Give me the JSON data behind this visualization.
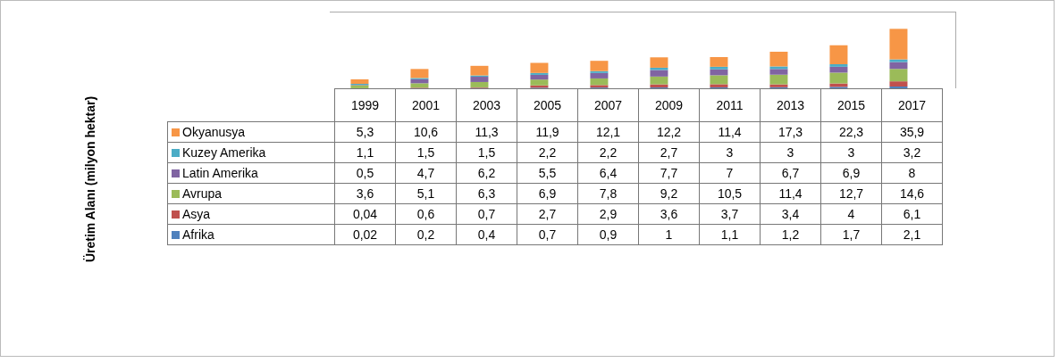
{
  "chart_data": {
    "type": "bar",
    "stacked": true,
    "annotations": [
      "Üretim Alanı (milyon hektar)"
    ],
    "legend": "left",
    "categories": [
      "1999",
      "2001",
      "2003",
      "2005",
      "2007",
      "2009",
      "2011",
      "2013",
      "2015",
      "2017"
    ],
    "series": [
      {
        "name": "Afrika",
        "color": "#4f81bd",
        "values": [
          0.02,
          0.2,
          0.4,
          0.7,
          0.9,
          1,
          1.1,
          1.2,
          1.7,
          2.1
        ],
        "value_labels": [
          "0,02",
          "0,2",
          "0,4",
          "0,7",
          "0,9",
          "1",
          "1,1",
          "1,2",
          "1,7",
          "2,1"
        ]
      },
      {
        "name": "Asya",
        "color": "#c0504d",
        "values": [
          0.04,
          0.6,
          0.7,
          2.7,
          2.9,
          3.6,
          3.7,
          3.4,
          4,
          6.1
        ],
        "value_labels": [
          "0,04",
          "0,6",
          "0,7",
          "2,7",
          "2,9",
          "3,6",
          "3,7",
          "3,4",
          "4",
          "6,1"
        ]
      },
      {
        "name": "Avrupa",
        "color": "#9bbb59",
        "values": [
          3.6,
          5.1,
          6.3,
          6.9,
          7.8,
          9.2,
          10.5,
          11.4,
          12.7,
          14.6
        ],
        "value_labels": [
          "3,6",
          "5,1",
          "6,3",
          "6,9",
          "7,8",
          "9,2",
          "10,5",
          "11,4",
          "12,7",
          "14,6"
        ]
      },
      {
        "name": "Latin Amerika",
        "color": "#8064a2",
        "values": [
          0.5,
          4.7,
          6.2,
          5.5,
          6.4,
          7.7,
          7,
          6.7,
          6.9,
          8
        ],
        "value_labels": [
          "0,5",
          "4,7",
          "6,2",
          "5,5",
          "6,4",
          "7,7",
          "7",
          "6,7",
          "6,9",
          "8"
        ]
      },
      {
        "name": "Kuzey Amerika",
        "color": "#4bacc6",
        "values": [
          1.1,
          1.5,
          1.5,
          2.2,
          2.2,
          2.7,
          3,
          3,
          3,
          3.2
        ],
        "value_labels": [
          "1,1",
          "1,5",
          "1,5",
          "2,2",
          "2,2",
          "2,7",
          "3",
          "3",
          "3",
          "3,2"
        ]
      },
      {
        "name": "Okyanusya",
        "color": "#f79646",
        "values": [
          5.3,
          10.6,
          11.3,
          11.9,
          12.1,
          12.2,
          11.4,
          17.3,
          22.3,
          35.9
        ],
        "value_labels": [
          "5,3",
          "10,6",
          "11,3",
          "11,9",
          "12,1",
          "12,2",
          "11,4",
          "17,3",
          "22,3",
          "35,9"
        ]
      }
    ]
  }
}
